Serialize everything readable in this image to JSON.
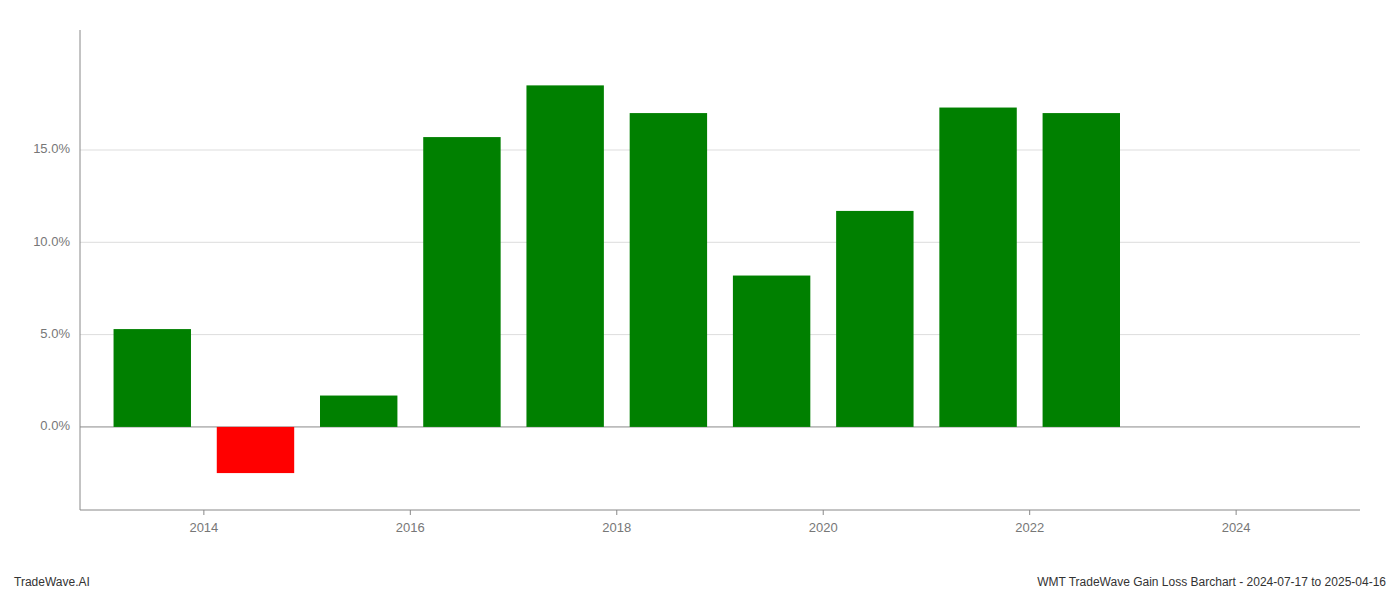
{
  "chart_data": {
    "type": "bar",
    "x": [
      2013.5,
      2014.5,
      2015.5,
      2016.5,
      2017.5,
      2018.5,
      2019.5,
      2020.5,
      2021.5,
      2022.5
    ],
    "values": [
      5.3,
      -2.5,
      1.7,
      15.7,
      18.5,
      17.0,
      8.2,
      11.7,
      17.3,
      17.0
    ],
    "colors": [
      "#008000",
      "#ff0000",
      "#008000",
      "#008000",
      "#008000",
      "#008000",
      "#008000",
      "#008000",
      "#008000",
      "#008000"
    ],
    "xlim": [
      2012.8,
      2025.2
    ],
    "xticks": [
      2014,
      2016,
      2018,
      2020,
      2022,
      2024
    ],
    "ylim": [
      -4.5,
      21.5
    ],
    "yticks": [
      {
        "value": 0.0,
        "label": "0.0%"
      },
      {
        "value": 5.0,
        "label": "5.0%"
      },
      {
        "value": 10.0,
        "label": "10.0%"
      },
      {
        "value": 15.0,
        "label": "15.0%"
      }
    ],
    "grid": true,
    "annotations": [
      "TradeWave.AI",
      "WMT TradeWave Gain Loss Barchart - 2024-07-17 to 2025-04-16"
    ]
  }
}
